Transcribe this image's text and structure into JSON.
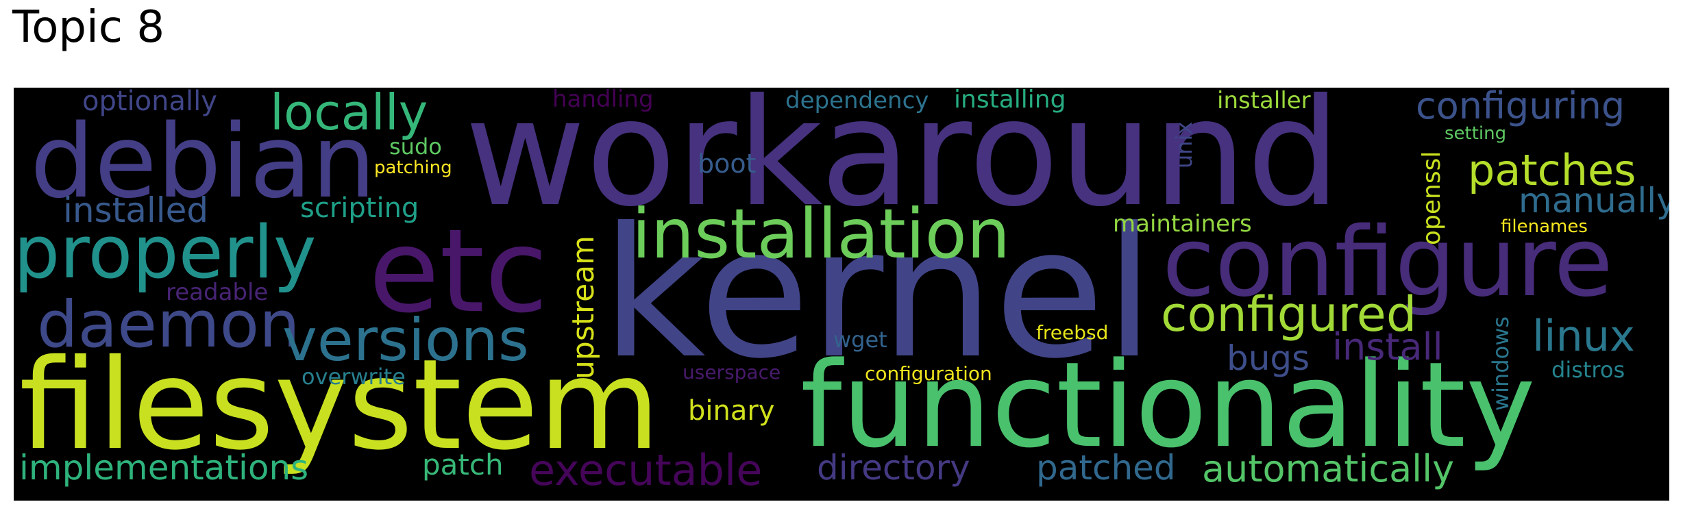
{
  "title": "Topic 8",
  "words": [
    {
      "text": "workaround",
      "color": "#46327e"
    },
    {
      "text": "kernel",
      "color": "#414487"
    },
    {
      "text": "functionality",
      "color": "#4ac16d"
    },
    {
      "text": "filesystem",
      "color": "#c8e020"
    },
    {
      "text": "etc",
      "color": "#481769"
    },
    {
      "text": "configure",
      "color": "#472c7a"
    },
    {
      "text": "debian",
      "color": "#433e85"
    },
    {
      "text": "installation",
      "color": "#6ccd5a"
    },
    {
      "text": "properly",
      "color": "#21918c"
    },
    {
      "text": "daemon",
      "color": "#3e4989"
    },
    {
      "text": "versions",
      "color": "#2c728e"
    },
    {
      "text": "configured",
      "color": "#a2da37"
    },
    {
      "text": "locally",
      "color": "#35b779"
    },
    {
      "text": "executable",
      "color": "#450559"
    },
    {
      "text": "automatically",
      "color": "#54c568"
    },
    {
      "text": "implementations",
      "color": "#2eb37c"
    },
    {
      "text": "directory",
      "color": "#443a83"
    },
    {
      "text": "patched",
      "color": "#31688e"
    },
    {
      "text": "linux",
      "color": "#2a788e"
    },
    {
      "text": "patches",
      "color": "#b5de2b"
    },
    {
      "text": "configuring",
      "color": "#3b528b"
    },
    {
      "text": "upstream",
      "color": "#d8e219"
    },
    {
      "text": "install",
      "color": "#482878"
    },
    {
      "text": "manually",
      "color": "#2f6c8e"
    },
    {
      "text": "installed",
      "color": "#38598c"
    },
    {
      "text": "bugs",
      "color": "#3d4e8a"
    },
    {
      "text": "binary",
      "color": "#d0e11c"
    },
    {
      "text": "patch",
      "color": "#37b878"
    },
    {
      "text": "scripting",
      "color": "#1fa088"
    },
    {
      "text": "optionally",
      "color": "#404688"
    },
    {
      "text": "installing",
      "color": "#27ad81"
    },
    {
      "text": "dependency",
      "color": "#2c738e"
    },
    {
      "text": "openssl",
      "color": "#cae11f"
    },
    {
      "text": "boot",
      "color": "#365c8d"
    },
    {
      "text": "maintainers",
      "color": "#93d741"
    },
    {
      "text": "installer",
      "color": "#9bd93c"
    },
    {
      "text": "readable",
      "color": "#482475"
    },
    {
      "text": "overwrite",
      "color": "#277f8e"
    },
    {
      "text": "windows",
      "color": "#2a768e"
    },
    {
      "text": "distros",
      "color": "#25838e"
    },
    {
      "text": "unix",
      "color": "#3f4788"
    },
    {
      "text": "handling",
      "color": "#440154"
    },
    {
      "text": "sudo",
      "color": "#5ec962"
    },
    {
      "text": "patching",
      "color": "#fde725"
    },
    {
      "text": "wget",
      "color": "#33638d"
    },
    {
      "text": "freebsd",
      "color": "#e5e419"
    },
    {
      "text": "configuration",
      "color": "#f1e51d"
    },
    {
      "text": "userspace",
      "color": "#481a6c"
    },
    {
      "text": "setting",
      "color": "#5ec962"
    },
    {
      "text": "filenames",
      "color": "#f6e620"
    }
  ]
}
